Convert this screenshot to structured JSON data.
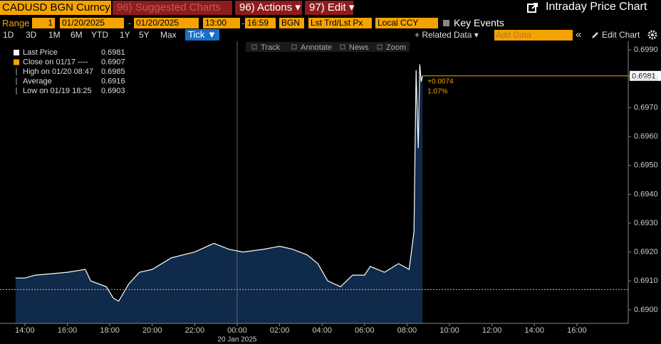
{
  "toolbar": {
    "security": "CADUSD BGN Curncy",
    "suggested": "96) Suggested Charts",
    "actions": "96) Actions ▾",
    "edit": "97) Edit ▾",
    "title": "Intraday Price Chart"
  },
  "range_bar": {
    "label": "Range",
    "period": "1",
    "start_date": "01/20/2025",
    "dash": "-",
    "end_date": "01/20/2025",
    "start_time": "13:00",
    "end_time": "16:59",
    "source": "BGN",
    "field": "Lst Trd/Lst Px",
    "currency": "Local CCY",
    "key_events": "Key Events"
  },
  "period_bar": {
    "periods": [
      "1D",
      "3D",
      "1M",
      "6M",
      "YTD",
      "1Y",
      "5Y",
      "Max"
    ],
    "tick": "Tick ▼",
    "related": "+ Related Data ▾",
    "add_data": "Add Data",
    "collapse": "«",
    "edit_chart": "Edit Chart"
  },
  "chart_tools": [
    "Track",
    "Annotate",
    "News",
    "Zoom"
  ],
  "chart_data": {
    "type": "area",
    "x": [
      -10.44,
      -10,
      -9.5,
      -8,
      -7.15,
      -6.9,
      -6.16,
      -5.83,
      -5.58,
      -5.1,
      -4.6,
      -4,
      -3.1,
      -2,
      -1.1,
      -0.4,
      0.27,
      1.27,
      2,
      2.6,
      3.3,
      3.8,
      4.27,
      4.87,
      5.44,
      6,
      6.27,
      6.94,
      7.6,
      8.1,
      8.33,
      8.43,
      8.53,
      8.6,
      8.67,
      8.73
    ],
    "series": [
      {
        "name": "Last Price",
        "color": "#ffffff",
        "fill": "#0f2a4a",
        "values": [
          0.6911,
          0.6911,
          0.6912,
          0.6913,
          0.6914,
          0.691,
          0.6908,
          0.6904,
          0.6903,
          0.6909,
          0.6913,
          0.6914,
          0.6918,
          0.692,
          0.6923,
          0.6921,
          0.692,
          0.6921,
          0.6922,
          0.6921,
          0.6919,
          0.6916,
          0.691,
          0.6908,
          0.6912,
          0.6912,
          0.6915,
          0.6913,
          0.6916,
          0.6914,
          0.6927,
          0.6983,
          0.6956,
          0.6985,
          0.6979,
          0.6981
        ]
      }
    ],
    "last_price": 0.6981,
    "stats": [
      {
        "label": "Close on 01/17 ----",
        "value": 0.6907,
        "color": "#f5a300"
      },
      {
        "label": "High on 01/20 08:47",
        "value": 0.6985
      },
      {
        "label": "Average",
        "value": 0.6916
      },
      {
        "label": "Low on 01/19 18:25",
        "value": 0.6903
      }
    ],
    "change": {
      "value": 0.0074,
      "label": "+0.0074"
    },
    "change_pct": {
      "value": 1.07,
      "label": "1.07%"
    },
    "xlabel": "20 Jan 2025",
    "xlim": [
      -11.17,
      18.42
    ],
    "xticks": [
      {
        "value": -10,
        "label": "14:00"
      },
      {
        "value": -8,
        "label": "16:00"
      },
      {
        "value": -6,
        "label": "18:00"
      },
      {
        "value": -4,
        "label": "20:00"
      },
      {
        "value": -2,
        "label": "22:00"
      },
      {
        "value": 0,
        "label": "00:00"
      },
      {
        "value": 2,
        "label": "02:00"
      },
      {
        "value": 4,
        "label": "04:00"
      },
      {
        "value": 6,
        "label": "06:00"
      },
      {
        "value": 8,
        "label": "08:00"
      },
      {
        "value": 10,
        "label": "10:00"
      },
      {
        "value": 12,
        "label": "12:00"
      },
      {
        "value": 14,
        "label": "14:00"
      },
      {
        "value": 16,
        "label": "16:00"
      }
    ],
    "ylim": [
      0.68953,
      0.6993
    ],
    "yticks": [
      {
        "value": 0.69,
        "label": "0.6900"
      },
      {
        "value": 0.691,
        "label": "0.6910"
      },
      {
        "value": 0.692,
        "label": "0.6920"
      },
      {
        "value": 0.693,
        "label": "0.6930"
      },
      {
        "value": 0.694,
        "label": "0.6940"
      },
      {
        "value": 0.695,
        "label": "0.6950"
      },
      {
        "value": 0.696,
        "label": "0.6960"
      },
      {
        "value": 0.697,
        "label": "0.6970"
      },
      {
        "value": 0.698,
        "label": "0.6980"
      },
      {
        "value": 0.699,
        "label": "0.6990"
      }
    ]
  }
}
